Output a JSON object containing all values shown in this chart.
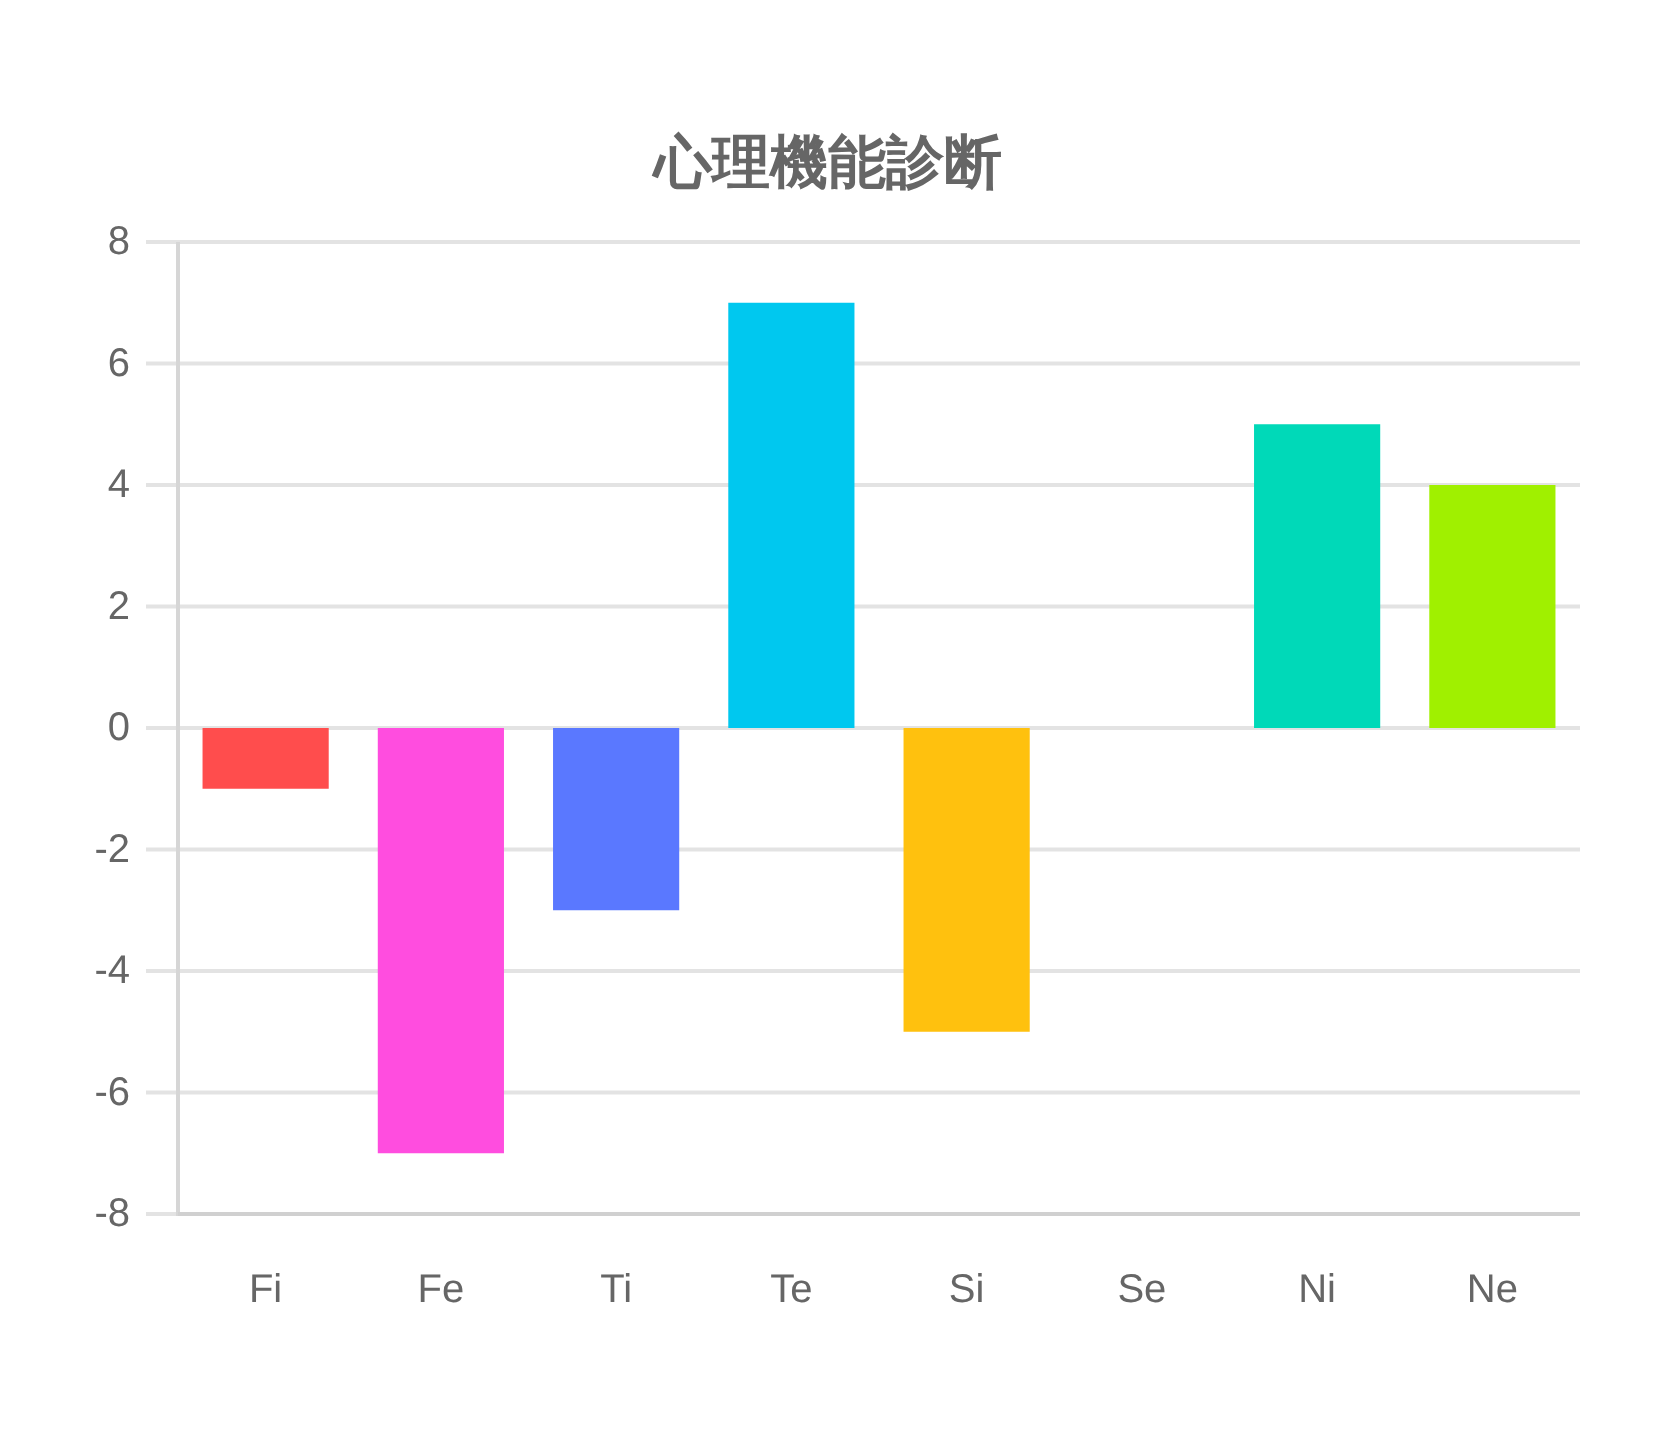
{
  "chart_data": {
    "type": "bar",
    "title": "心理機能診断",
    "categories": [
      "Fi",
      "Fe",
      "Ti",
      "Te",
      "Si",
      "Se",
      "Ni",
      "Ne"
    ],
    "values": [
      -1,
      -7,
      -3,
      7,
      -5,
      0,
      5,
      4
    ],
    "colors": [
      "#ff4d4d",
      "#ff4ddf",
      "#5a78ff",
      "#00c8ef",
      "#ffc10e",
      null,
      "#00d9b8",
      "#a0f000"
    ],
    "ylim": [
      -8,
      8
    ],
    "yticks": [
      -8,
      -6,
      -4,
      -2,
      0,
      2,
      4,
      6,
      8
    ],
    "grid": "y"
  }
}
